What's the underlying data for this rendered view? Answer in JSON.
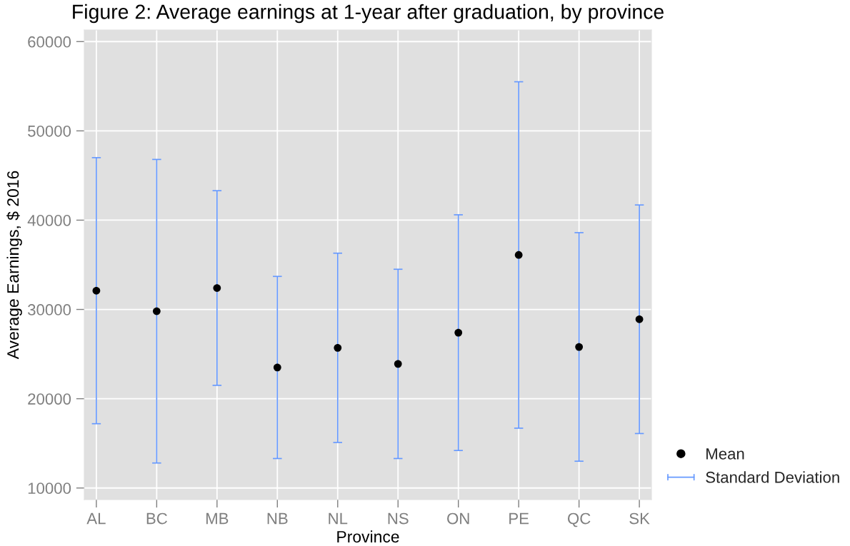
{
  "chart_data": {
    "type": "scatter",
    "title": "Figure 2: Average earnings at 1-year after graduation, by province",
    "xlabel": "Province",
    "ylabel": "Average Earnings, $ 2016",
    "categories": [
      "AL",
      "BC",
      "MB",
      "NB",
      "NL",
      "NS",
      "ON",
      "PE",
      "QC",
      "SK"
    ],
    "series": [
      {
        "name": "Mean",
        "marker": "circle",
        "color": "#000000",
        "values": [
          32100,
          29800,
          32400,
          23500,
          25700,
          23900,
          27400,
          36100,
          25800,
          28900
        ],
        "errors": [
          14900,
          17000,
          10900,
          10200,
          10600,
          10600,
          13200,
          19400,
          12800,
          12800
        ]
      },
      {
        "name": "Standard Deviation",
        "marker": "none",
        "color": "#6699ff",
        "values": [
          null,
          null,
          null,
          null,
          null,
          null,
          null,
          null,
          null,
          null
        ]
      }
    ],
    "ylim": [
      8700,
      61300
    ],
    "yticks": [
      10000,
      20000,
      30000,
      40000,
      50000,
      60000
    ],
    "grid": true,
    "legend": "bottom right"
  }
}
